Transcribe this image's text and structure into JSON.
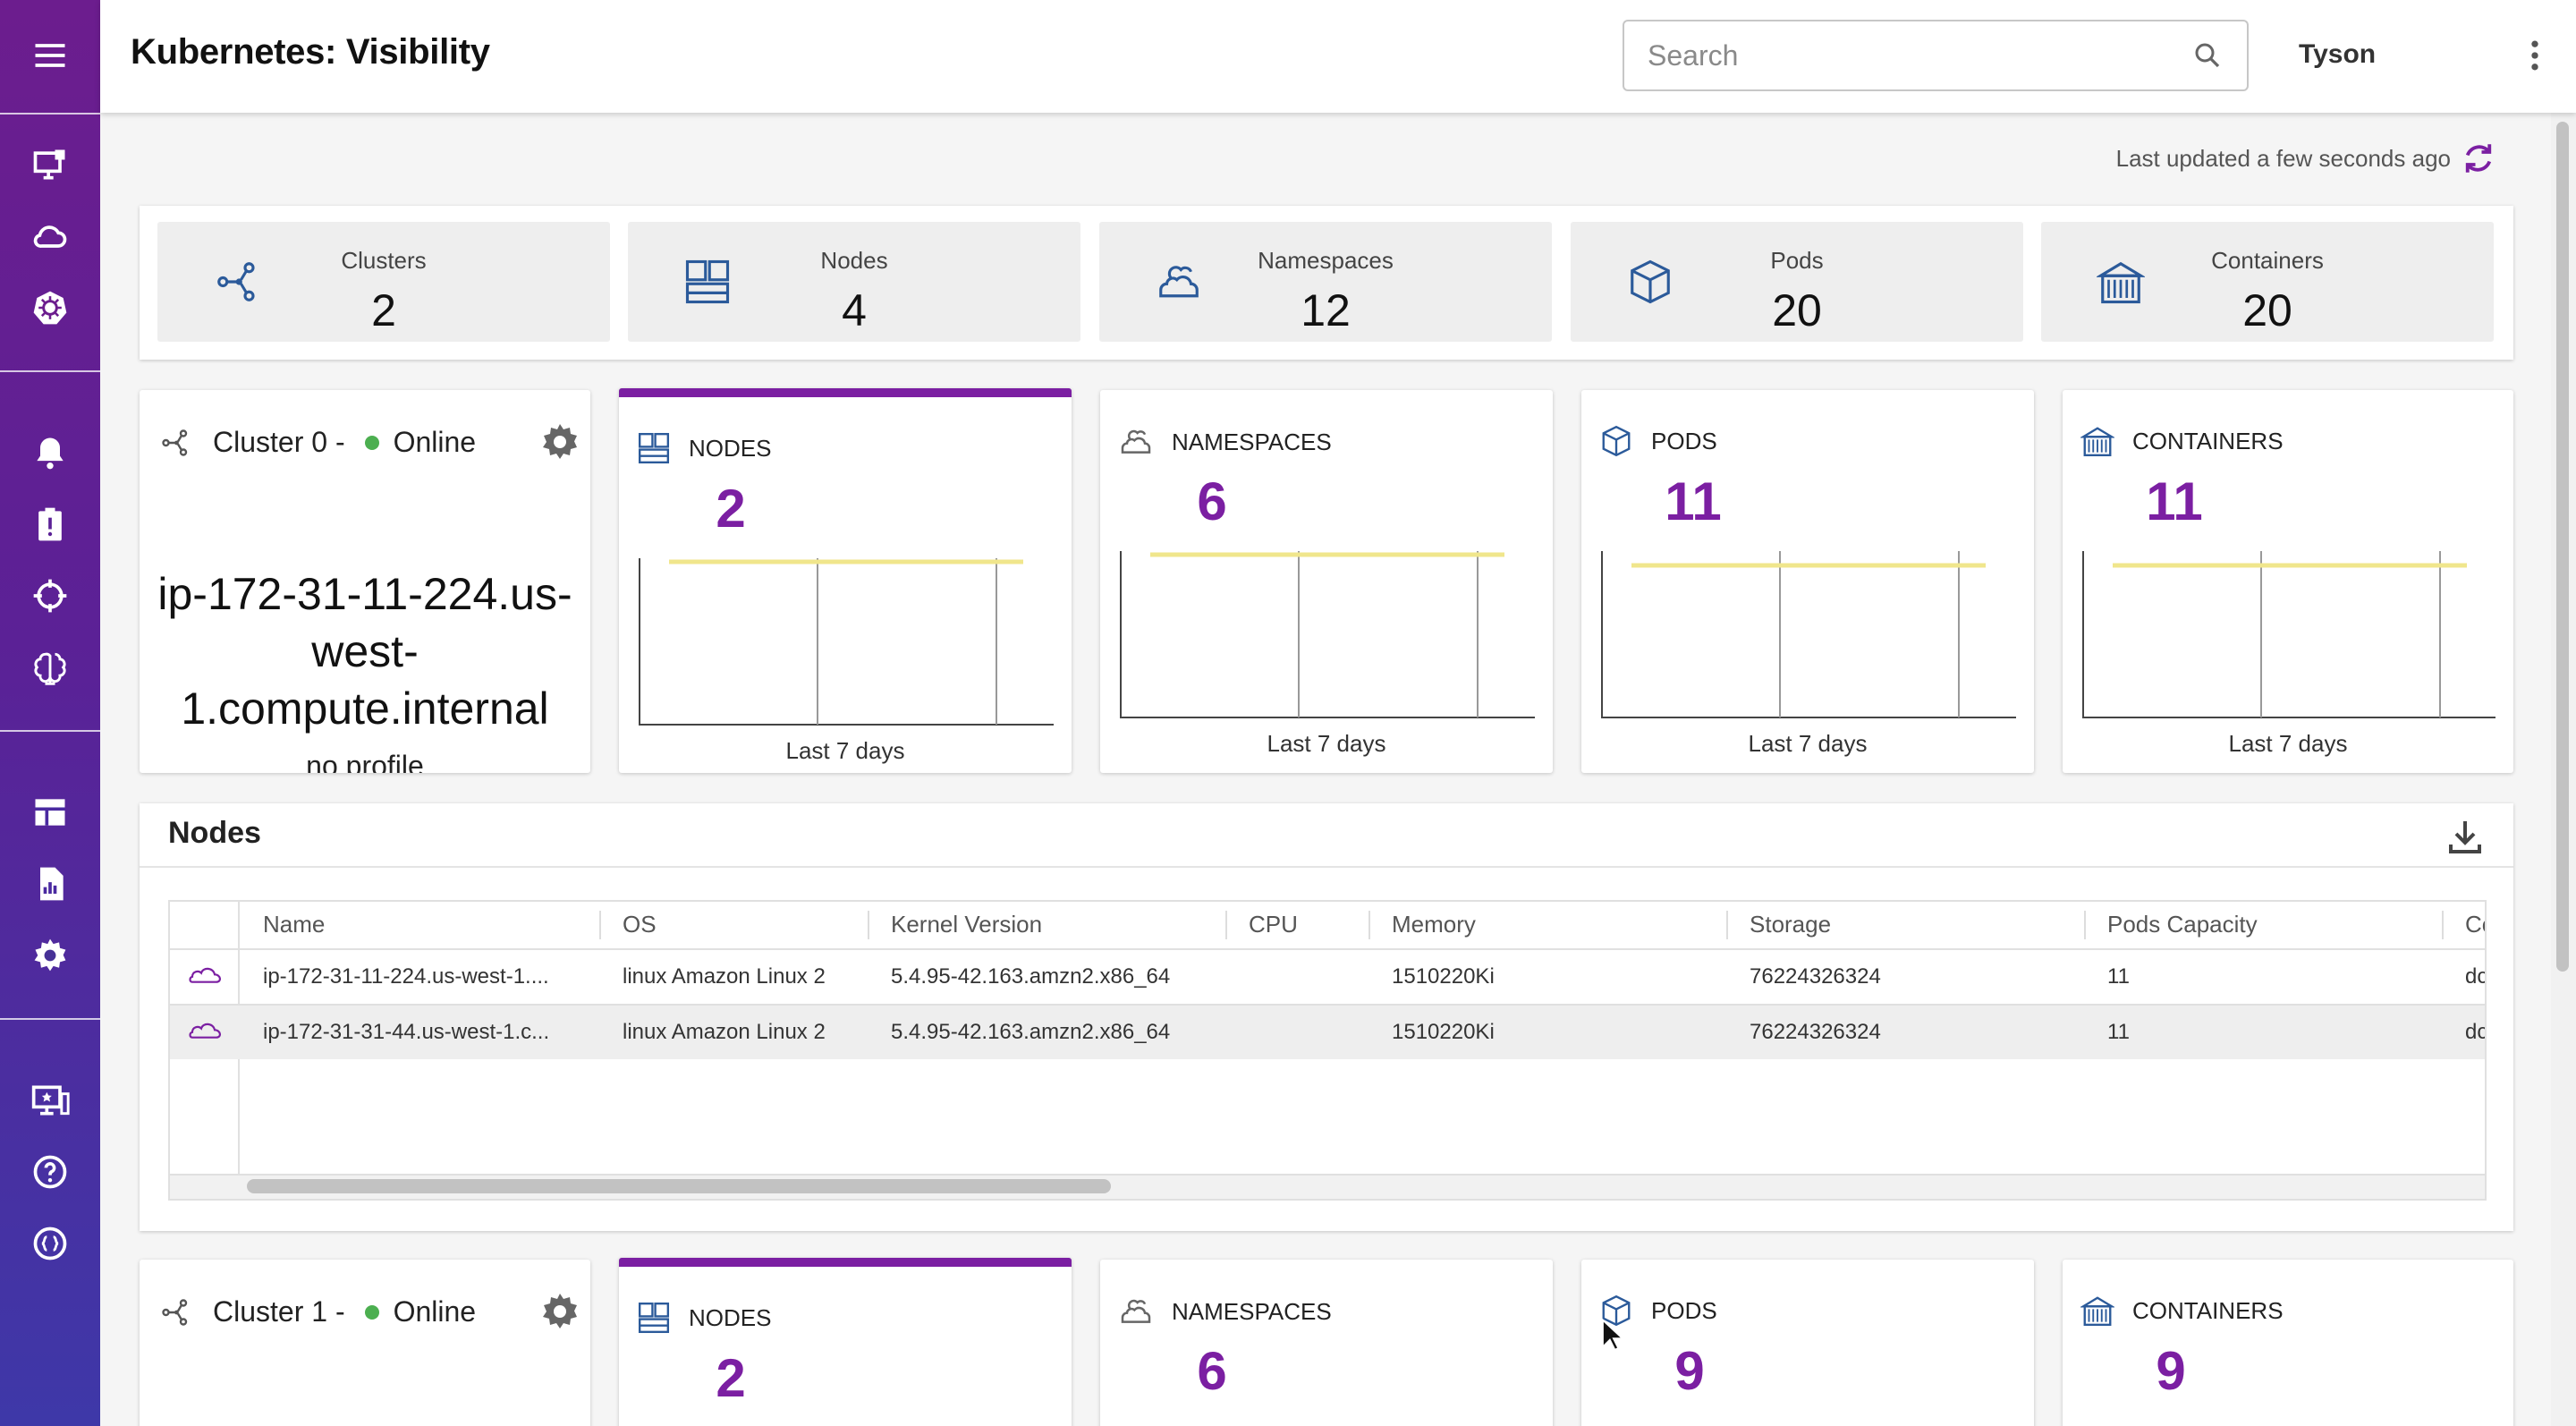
{
  "app": {
    "title": "Kubernetes: Visibility"
  },
  "header": {
    "search_placeholder": "Search",
    "user": "Tyson"
  },
  "status": {
    "last_updated": "Last updated a few seconds ago"
  },
  "sidebar": {
    "items": [
      "menu-icon",
      "monitor-icon",
      "cloud-icon",
      "kubernetes-icon",
      "bell-icon",
      "alert-report-icon",
      "target-icon",
      "brain-icon",
      "dashboard-icon",
      "report-icon",
      "gear-icon",
      "favorite-screen-icon",
      "help-icon",
      "api-icon"
    ]
  },
  "summary": [
    {
      "label": "Clusters",
      "value": "2",
      "icon": "cluster-icon"
    },
    {
      "label": "Nodes",
      "value": "4",
      "icon": "nodes-icon"
    },
    {
      "label": "Namespaces",
      "value": "12",
      "icon": "namespaces-icon"
    },
    {
      "label": "Pods",
      "value": "20",
      "icon": "pod-icon"
    },
    {
      "label": "Containers",
      "value": "20",
      "icon": "container-icon"
    }
  ],
  "clusters": [
    {
      "name": "Cluster 0 -",
      "status": "Online",
      "host": "ip-172-31-11-224.us-west-1.compute.internal",
      "profile": "no profile",
      "metrics": [
        {
          "label": "NODES",
          "value": "2",
          "footer": "Last 7 days"
        },
        {
          "label": "NAMESPACES",
          "value": "6",
          "footer": "Last 7 days"
        },
        {
          "label": "PODS",
          "value": "11",
          "footer": "Last 7 days"
        },
        {
          "label": "CONTAINERS",
          "value": "11",
          "footer": "Last 7 days"
        }
      ]
    },
    {
      "name": "Cluster 1 -",
      "status": "Online",
      "metrics": [
        {
          "label": "NODES",
          "value": "2"
        },
        {
          "label": "NAMESPACES",
          "value": "6"
        },
        {
          "label": "PODS",
          "value": "9"
        },
        {
          "label": "CONTAINERS",
          "value": "9"
        }
      ]
    }
  ],
  "nodes_table": {
    "title": "Nodes",
    "columns": [
      "Name",
      "OS",
      "Kernel Version",
      "CPU",
      "Memory",
      "Storage",
      "Pods Capacity",
      "Co"
    ],
    "rows": [
      [
        "ip-172-31-11-224.us-west-1....",
        "linux Amazon Linux 2",
        "5.4.95-42.163.amzn2.x86_64",
        "",
        "1510220Ki",
        "76224326324",
        "11",
        "dc"
      ],
      [
        "ip-172-31-31-44.us-west-1.c...",
        "linux Amazon Linux 2",
        "5.4.95-42.163.amzn2.x86_64",
        "",
        "1510220Ki",
        "76224326324",
        "11",
        "dc"
      ]
    ]
  },
  "colors": {
    "accent": "#7b1fa2",
    "sidebar_top": "#6c1d8e",
    "sidebar_bottom": "#3e38a8",
    "online": "#4caf50",
    "chart_line": "#f0e68c"
  }
}
